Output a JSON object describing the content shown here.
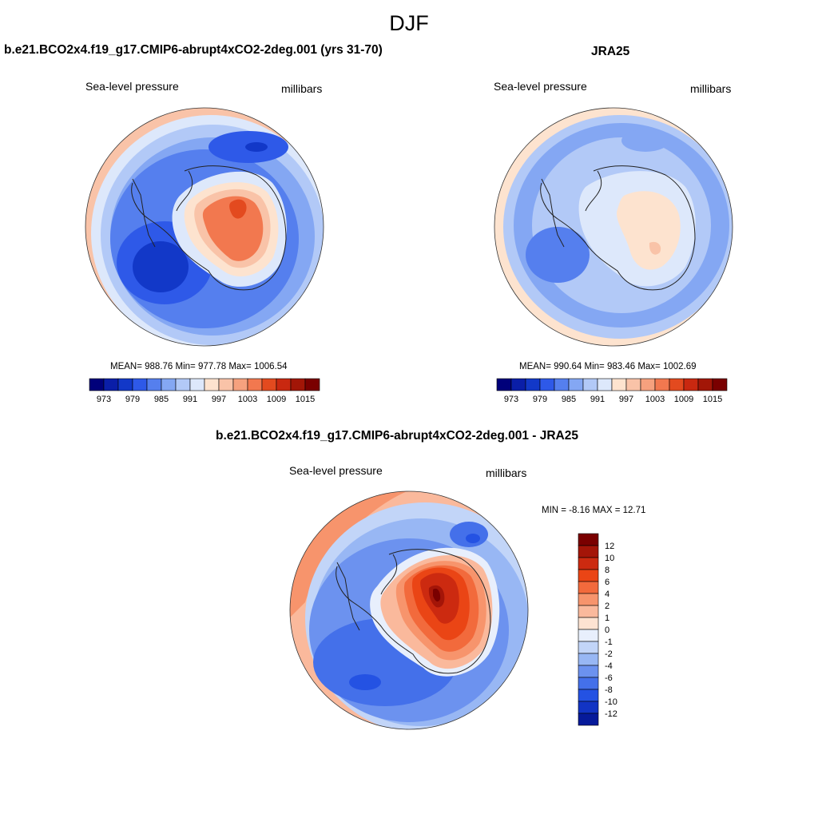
{
  "figure": {
    "title": "DJF"
  },
  "panels": {
    "model": {
      "title": "b.e21.BCO2x4.f19_g17.CMIP6-abrupt4xCO2-2deg.001 (yrs 31-70)",
      "variable": "Sea-level pressure",
      "units": "millibars",
      "stats": "MEAN= 988.76  Min= 977.78  Max= 1006.54"
    },
    "obs": {
      "title": "JRA25",
      "variable": "Sea-level pressure",
      "units": "millibars",
      "stats": "MEAN= 990.64  Min= 983.46  Max= 1002.69"
    },
    "diff": {
      "title": "b.e21.BCO2x4.f19_g17.CMIP6-abrupt4xCO2-2deg.001 - JRA25",
      "variable": "Sea-level pressure",
      "units": "millibars",
      "stats": "MIN =  -8.16 MAX =  12.71"
    }
  },
  "colorbar_abs": {
    "tick_labels": [
      "973",
      "979",
      "985",
      "991",
      "997",
      "1003",
      "1009",
      "1015"
    ],
    "colors": [
      "#00007a",
      "#0a1ea8",
      "#1238c8",
      "#2e59e8",
      "#557fee",
      "#84a7f3",
      "#b2c9f7",
      "#dde8fb",
      "#fde3cf",
      "#f9c3a8",
      "#f6a17e",
      "#f2784f",
      "#e34a1f",
      "#c92810",
      "#a21607",
      "#7a0000"
    ]
  },
  "colorbar_diff": {
    "tick_labels": [
      "12",
      "10",
      "8",
      "6",
      "4",
      "2",
      "1",
      "0",
      "-1",
      "-2",
      "-4",
      "-6",
      "-8",
      "-10",
      "-12"
    ],
    "colors": [
      "#7a0000",
      "#a41508",
      "#cc2a10",
      "#ea4515",
      "#f26a3c",
      "#f7946c",
      "#fab99c",
      "#fde3d2",
      "#e8effc",
      "#c2d5f8",
      "#98b7f4",
      "#6c92ef",
      "#4470ea",
      "#2452e3",
      "#1234c4",
      "#061a9a"
    ]
  }
}
